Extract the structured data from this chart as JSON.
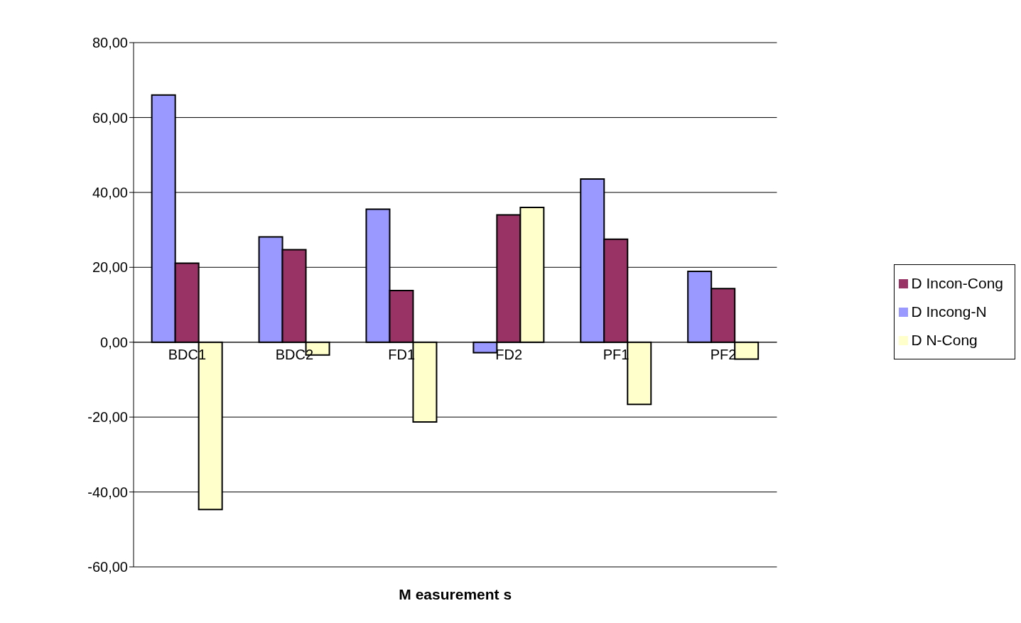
{
  "chart_data": {
    "type": "bar",
    "xlabel": "M easurement s",
    "categories": [
      "BDC1",
      "BDC2",
      "FD1",
      "FD2",
      "PF1",
      "PF2"
    ],
    "series": [
      {
        "name": "D Incong-N",
        "color": "#9999ff",
        "values": [
          66.0,
          28.1,
          35.5,
          -2.8,
          43.6,
          18.9
        ]
      },
      {
        "name": "D Incon-Cong",
        "color": "#993366",
        "values": [
          21.1,
          24.7,
          13.8,
          34.0,
          27.5,
          14.3
        ]
      },
      {
        "name": "D N-Cong",
        "color": "#ffffcc",
        "values": [
          -44.7,
          -3.4,
          -21.3,
          36.0,
          -16.6,
          -4.5
        ]
      }
    ],
    "ylim": [
      -60,
      80
    ],
    "yticks": [
      {
        "value": -60,
        "label": "-60,00"
      },
      {
        "value": -40,
        "label": "-40,00"
      },
      {
        "value": -20,
        "label": "-20,00"
      },
      {
        "value": 0,
        "label": "0,00"
      },
      {
        "value": 20,
        "label": "20,00"
      },
      {
        "value": 40,
        "label": "40,00"
      },
      {
        "value": 60,
        "label": "60,00"
      },
      {
        "value": 80,
        "label": "80,00"
      }
    ],
    "grid": "y",
    "legend": "right"
  }
}
